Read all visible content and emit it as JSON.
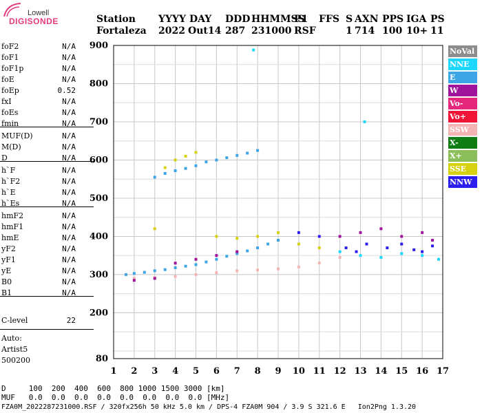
{
  "logo": {
    "top": "Lowell",
    "main": "DIGISONDE"
  },
  "header": {
    "labels": [
      "Station",
      "YYYY",
      "DAY",
      "DDD",
      "HHMMSS",
      "P1",
      "FFS",
      "S",
      "AXN",
      "PPS",
      "IGA",
      "PS"
    ],
    "values": [
      "Fortaleza",
      "2022",
      "Out14",
      "287",
      "231000",
      "RSF",
      "",
      "1",
      "714",
      "100",
      "10+",
      "11"
    ]
  },
  "params_group1": [
    {
      "name": "foF2",
      "value": "N/A"
    },
    {
      "name": "foF1",
      "value": "N/A"
    },
    {
      "name": "foF1p",
      "value": "N/A"
    },
    {
      "name": "foE",
      "value": "N/A"
    },
    {
      "name": "foEp",
      "value": "0.52"
    },
    {
      "name": "fxI",
      "value": "N/A"
    },
    {
      "name": "foEs",
      "value": "N/A"
    },
    {
      "name": "fmin",
      "value": "N/A"
    }
  ],
  "params_group2": [
    {
      "name": "MUF(D)",
      "value": "N/A"
    },
    {
      "name": "M(D)",
      "value": "N/A"
    },
    {
      "name": "D",
      "value": "N/A"
    }
  ],
  "params_group3": [
    {
      "name": "h`F",
      "value": "N/A"
    },
    {
      "name": "h`F2",
      "value": "N/A"
    },
    {
      "name": "h`E",
      "value": "N/A"
    },
    {
      "name": "h`Es",
      "value": "N/A"
    }
  ],
  "params_group4": [
    {
      "name": "hmF2",
      "value": "N/A"
    },
    {
      "name": "hmF1",
      "value": "N/A"
    },
    {
      "name": "hmE",
      "value": "N/A"
    },
    {
      "name": "yF2",
      "value": "N/A"
    },
    {
      "name": "yF1",
      "value": "N/A"
    },
    {
      "name": "yE",
      "value": "N/A"
    },
    {
      "name": "B0",
      "value": "N/A"
    },
    {
      "name": "B1",
      "value": "N/A"
    }
  ],
  "clevel": {
    "name": "C-level",
    "value": "22"
  },
  "auto": {
    "line1": "Auto:",
    "line2": "Artist5",
    "line3": "500200"
  },
  "legend": [
    {
      "label": "NoVal",
      "color": "#8c8c8c"
    },
    {
      "label": "NNE",
      "color": "#1ed7ff"
    },
    {
      "label": "E",
      "color": "#3ca5e6"
    },
    {
      "label": "W",
      "color": "#a0149b"
    },
    {
      "label": "Vo-",
      "color": "#e6287d"
    },
    {
      "label": "Vo+",
      "color": "#f01437"
    },
    {
      "label": "SSW",
      "color": "#f5b4b4"
    },
    {
      "label": "X-",
      "color": "#0f7d14"
    },
    {
      "label": "X+",
      "color": "#8cbe5a"
    },
    {
      "label": "SSE",
      "color": "#d7d20f"
    },
    {
      "label": "NNW",
      "color": "#2d1ef0"
    }
  ],
  "footer": {
    "d_row": "D     100  200  400  600  800 1000 1500 3000 [km]",
    "muf_row": "MUF   0.0  0.0  0.0  0.0  0.0  0.0  0.0  0.0 [MHz]",
    "info": "FZA0M_2022287231000.RSF / 320fx256h 50 kHz 5.0 km / DPS-4 FZA0M 904 / 3.9 S 321.6 E   Ion2Png 1.3.20"
  },
  "chart_data": {
    "type": "scatter",
    "title": "",
    "xlabel": "",
    "ylabel": "",
    "xlim": [
      1,
      17
    ],
    "ylim": [
      80,
      900
    ],
    "x_ticks": [
      1,
      2,
      3,
      4,
      5,
      6,
      7,
      8,
      9,
      10,
      11,
      12,
      13,
      14,
      15,
      16,
      17
    ],
    "y_ticks": [
      80,
      200,
      300,
      400,
      500,
      600,
      700,
      800,
      900
    ],
    "grid": true,
    "series": [
      {
        "name": "E",
        "color": "#3ca5e6",
        "points": [
          [
            1.6,
            300
          ],
          [
            2.0,
            303
          ],
          [
            2.5,
            306
          ],
          [
            3.0,
            310
          ],
          [
            3.5,
            313
          ],
          [
            4.0,
            318
          ],
          [
            4.5,
            322
          ],
          [
            5.0,
            326
          ],
          [
            5.5,
            333
          ],
          [
            6.0,
            340
          ],
          [
            6.5,
            348
          ],
          [
            7.0,
            355
          ],
          [
            7.5,
            362
          ],
          [
            8.0,
            370
          ],
          [
            8.5,
            380
          ],
          [
            9.0,
            390
          ],
          [
            3.0,
            555
          ],
          [
            3.5,
            565
          ],
          [
            4.0,
            572
          ],
          [
            4.5,
            578
          ],
          [
            5.0,
            585
          ],
          [
            5.5,
            595
          ],
          [
            6.0,
            600
          ],
          [
            6.5,
            606
          ],
          [
            7.0,
            612
          ],
          [
            7.5,
            618
          ],
          [
            8.0,
            625
          ]
        ]
      },
      {
        "name": "SSW",
        "color": "#f5b4b4",
        "points": [
          [
            2.0,
            290
          ],
          [
            3.0,
            292
          ],
          [
            4.0,
            295
          ],
          [
            5.0,
            300
          ],
          [
            6.0,
            305
          ],
          [
            7.0,
            310
          ],
          [
            8.0,
            312
          ],
          [
            9.0,
            315
          ],
          [
            10.0,
            320
          ],
          [
            11.0,
            330
          ],
          [
            12.0,
            345
          ]
        ]
      },
      {
        "name": "SSE",
        "color": "#d7d20f",
        "points": [
          [
            3.0,
            420
          ],
          [
            3.5,
            580
          ],
          [
            4.0,
            600
          ],
          [
            4.5,
            610
          ],
          [
            5.0,
            620
          ],
          [
            6.0,
            400
          ],
          [
            7.0,
            395
          ],
          [
            8.0,
            400
          ],
          [
            9.0,
            410
          ],
          [
            10.0,
            380
          ],
          [
            11.0,
            370
          ]
        ]
      },
      {
        "name": "W",
        "color": "#a0149b",
        "points": [
          [
            2.0,
            285
          ],
          [
            3.0,
            290
          ],
          [
            4.0,
            330
          ],
          [
            5.0,
            340
          ],
          [
            6.0,
            350
          ],
          [
            7.0,
            360
          ],
          [
            12.0,
            400
          ],
          [
            13.0,
            410
          ],
          [
            14.0,
            420
          ],
          [
            15.0,
            400
          ],
          [
            16.0,
            410
          ],
          [
            16.5,
            390
          ]
        ]
      },
      {
        "name": "NNW",
        "color": "#2d1ef0",
        "points": [
          [
            10.0,
            410
          ],
          [
            11.0,
            400
          ],
          [
            12.3,
            370
          ],
          [
            12.8,
            360
          ],
          [
            13.3,
            380
          ],
          [
            14.3,
            370
          ],
          [
            15.0,
            380
          ],
          [
            15.6,
            365
          ],
          [
            16.0,
            360
          ],
          [
            16.5,
            375
          ]
        ]
      },
      {
        "name": "NNE",
        "color": "#1ed7ff",
        "points": [
          [
            12.0,
            360
          ],
          [
            13.0,
            350
          ],
          [
            14.0,
            345
          ],
          [
            15.0,
            355
          ],
          [
            16.0,
            350
          ],
          [
            16.8,
            340
          ],
          [
            13.2,
            700
          ],
          [
            7.8,
            888
          ]
        ]
      }
    ]
  }
}
